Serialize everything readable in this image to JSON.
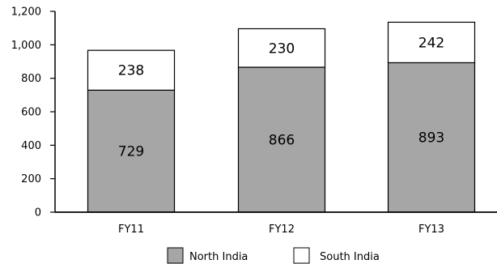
{
  "chart_data": {
    "type": "bar",
    "stacked": true,
    "categories": [
      "FY11",
      "FY12",
      "FY13"
    ],
    "series": [
      {
        "name": "North India",
        "values": [
          729,
          866,
          893
        ],
        "color": "#a6a6a6"
      },
      {
        "name": "South India",
        "values": [
          238,
          230,
          242
        ],
        "color": "#ffffff"
      }
    ],
    "y_ticks": [
      "0",
      "200",
      "400",
      "600",
      "800",
      "1,000",
      "1,200"
    ],
    "ylim": [
      0,
      1200
    ],
    "grid": false,
    "legend_position": "bottom",
    "title": "",
    "xlabel": "",
    "ylabel": ""
  }
}
